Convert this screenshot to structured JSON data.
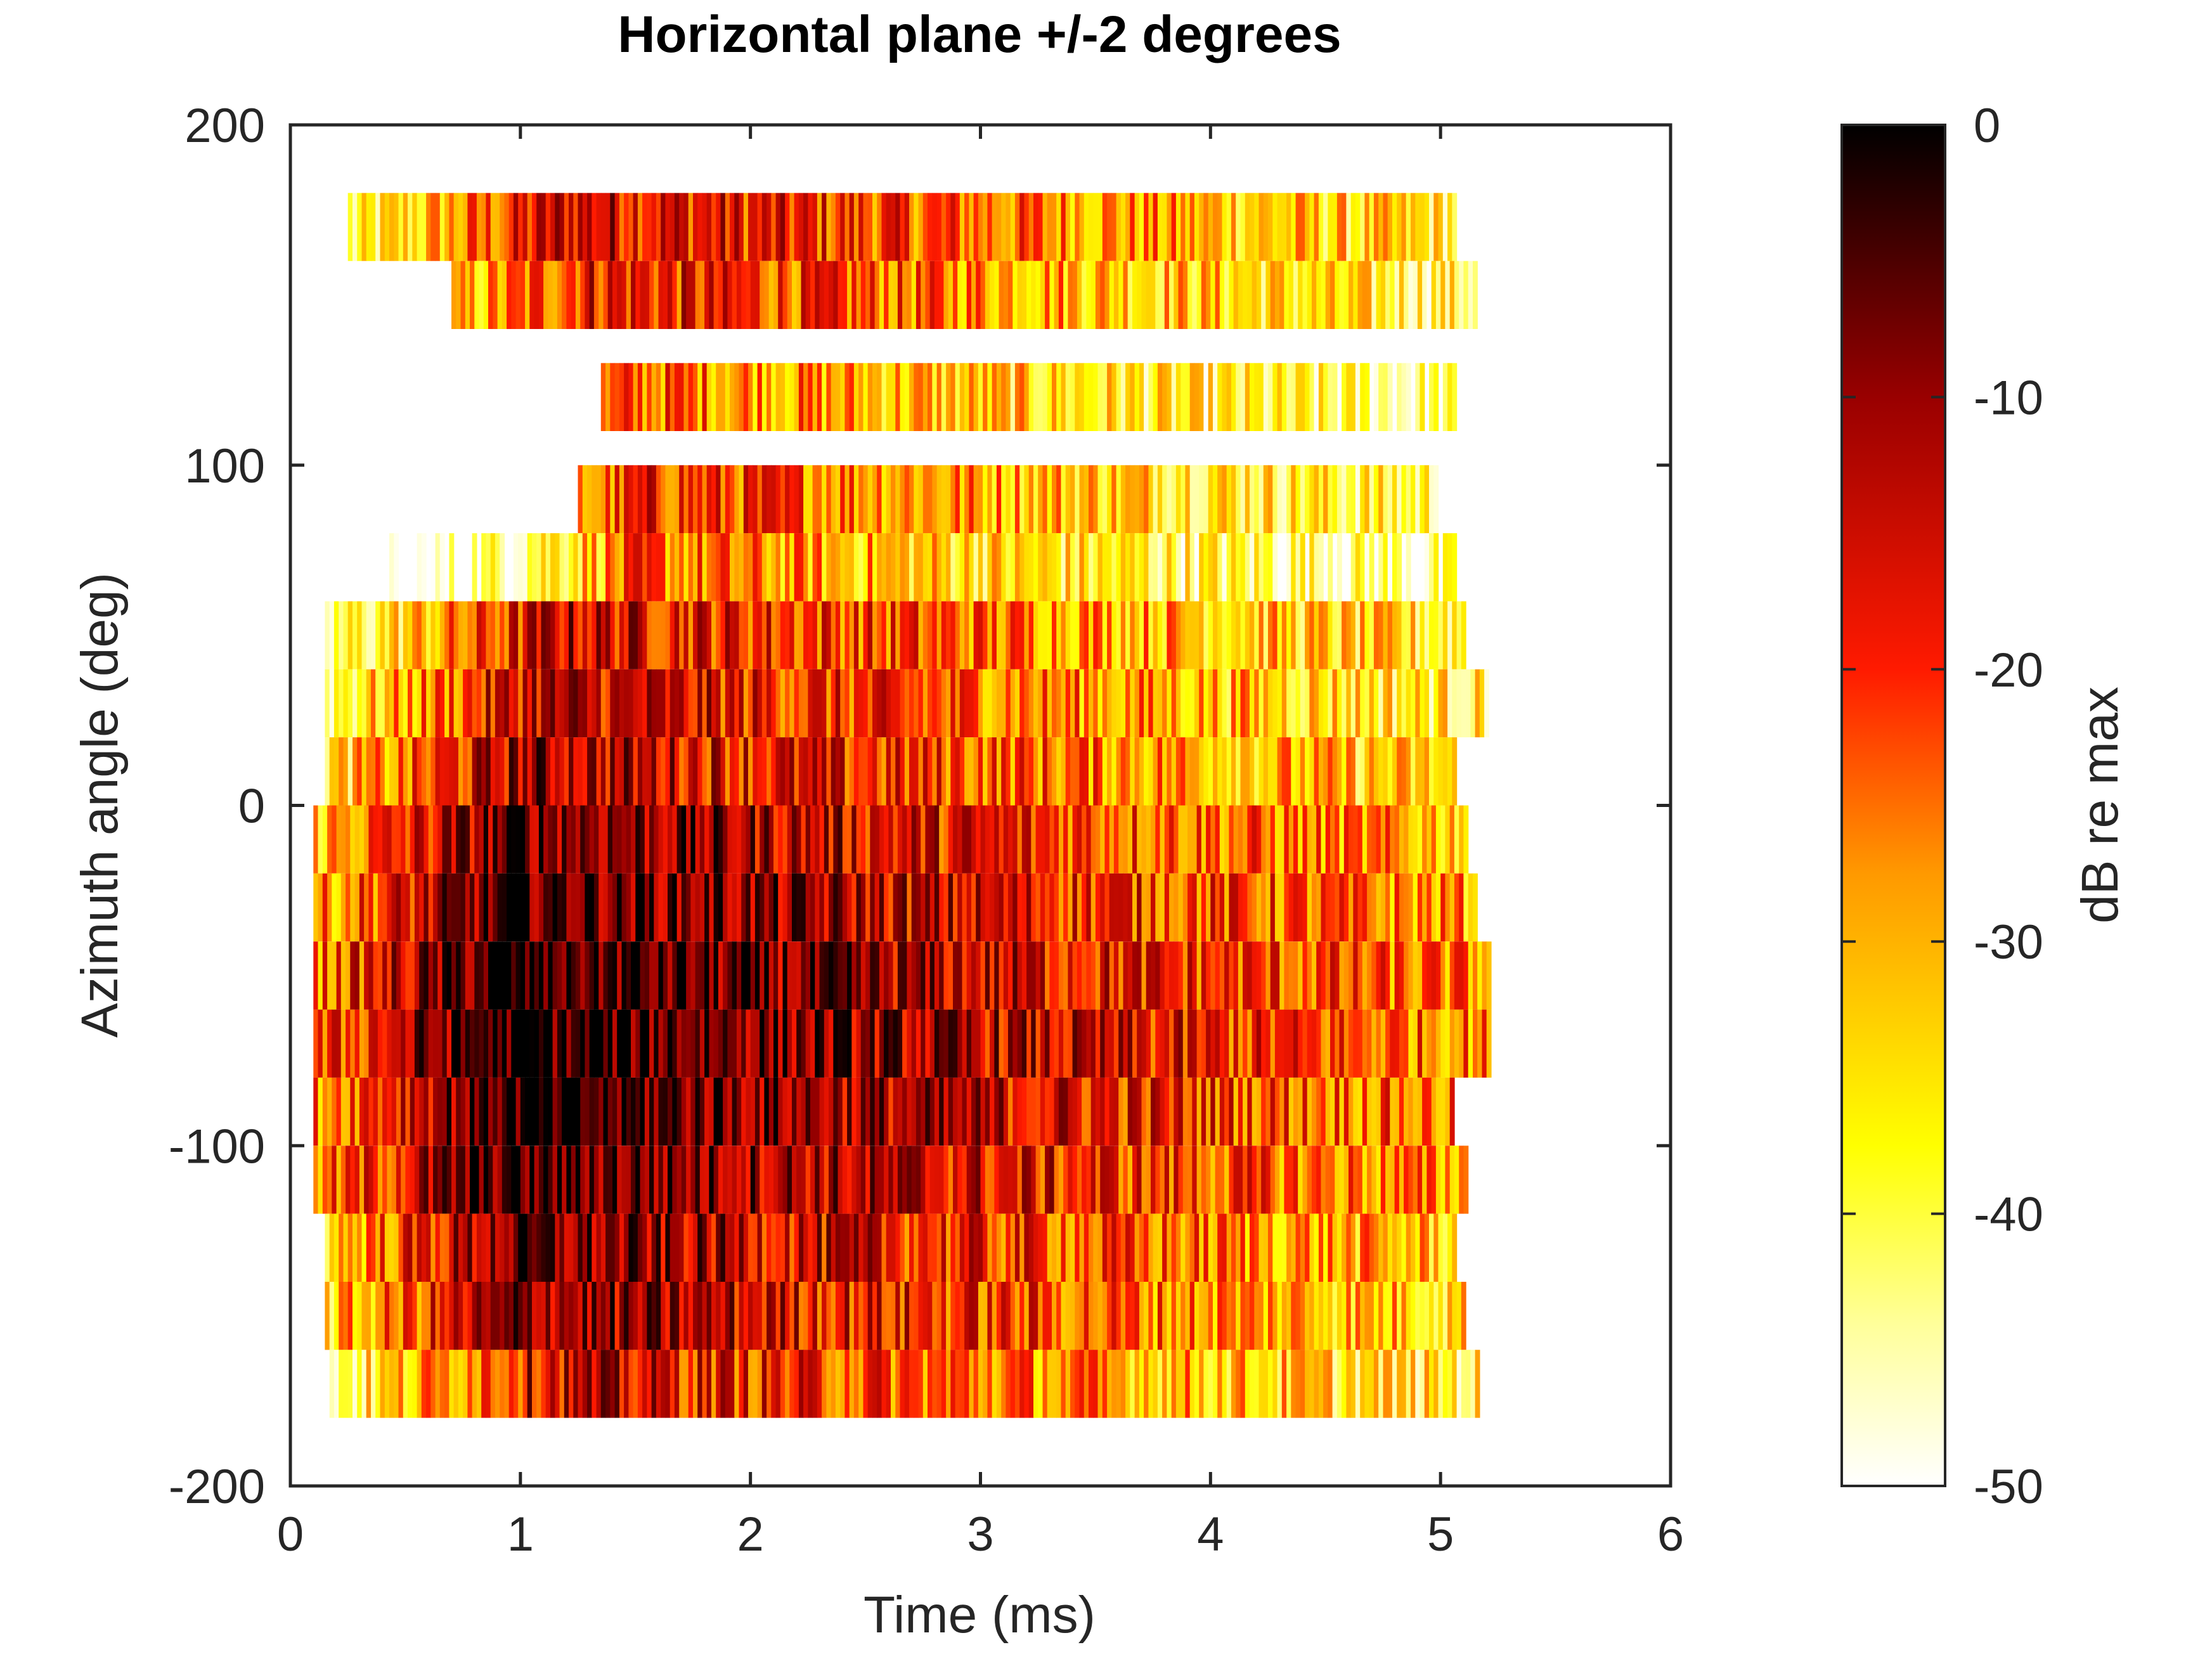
{
  "chart_data": {
    "type": "heatmap",
    "title": "Horizontal plane +/-2 degrees",
    "xlabel": "Time (ms)",
    "ylabel": "Azimuth angle (deg)",
    "xlim": [
      0,
      6
    ],
    "ylim": [
      -200,
      200
    ],
    "x_ticks": [
      "0",
      "1",
      "2",
      "3",
      "4",
      "5",
      "6"
    ],
    "y_ticks": [
      "200",
      "100",
      "0",
      "-100",
      "-200"
    ],
    "colorbar": {
      "label": "dB re max",
      "range": [
        -50,
        0
      ],
      "ticks": [
        "0",
        "-10",
        "-20",
        "-30",
        "-40",
        "-50"
      ],
      "colormap": [
        "#ffffff",
        "#ffff00",
        "#ff8000",
        "#ff0000",
        "#800000",
        "#000000"
      ]
    },
    "rows": [
      {
        "azimuth": 170,
        "t_start": 0.25,
        "t_end": 5.05,
        "peak_ms": 1.2,
        "peak_db": -14
      },
      {
        "azimuth": 150,
        "t_start": 0.7,
        "t_end": 5.15,
        "peak_ms": 1.3,
        "peak_db": -17
      },
      {
        "azimuth": 120,
        "t_start": 1.35,
        "t_end": 5.05,
        "peak_ms": 1.5,
        "peak_db": -24
      },
      {
        "azimuth": 90,
        "t_start": 1.25,
        "t_end": 5.0,
        "peak_ms": 1.55,
        "peak_db": -20
      },
      {
        "azimuth": 70,
        "t_start": 0.25,
        "t_end": 5.05,
        "peak_ms": 1.5,
        "peak_db": -25
      },
      {
        "azimuth": 50,
        "t_start": 0.15,
        "t_end": 5.1,
        "peak_ms": 1.15,
        "peak_db": -14
      },
      {
        "azimuth": 30,
        "t_start": 0.15,
        "t_end": 5.2,
        "peak_ms": 1.05,
        "peak_db": -13
      },
      {
        "azimuth": 10,
        "t_start": 0.15,
        "t_end": 5.05,
        "peak_ms": 1.0,
        "peak_db": -11
      },
      {
        "azimuth": -10,
        "t_start": 0.1,
        "t_end": 5.1,
        "peak_ms": 0.95,
        "peak_db": -6
      },
      {
        "azimuth": -30,
        "t_start": 0.1,
        "t_end": 5.15,
        "peak_ms": 0.95,
        "peak_db": -4
      },
      {
        "azimuth": -50,
        "t_start": 0.1,
        "t_end": 5.2,
        "peak_ms": 0.9,
        "peak_db": -2
      },
      {
        "azimuth": -70,
        "t_start": 0.1,
        "t_end": 5.2,
        "peak_ms": 0.9,
        "peak_db": -1
      },
      {
        "azimuth": -90,
        "t_start": 0.1,
        "t_end": 5.05,
        "peak_ms": 0.9,
        "peak_db": -2
      },
      {
        "azimuth": -110,
        "t_start": 0.1,
        "t_end": 5.1,
        "peak_ms": 0.9,
        "peak_db": -4
      },
      {
        "azimuth": -130,
        "t_start": 0.15,
        "t_end": 5.05,
        "peak_ms": 0.95,
        "peak_db": -8
      },
      {
        "azimuth": -150,
        "t_start": 0.15,
        "t_end": 5.1,
        "peak_ms": 1.0,
        "peak_db": -9
      },
      {
        "azimuth": -170,
        "t_start": 0.15,
        "t_end": 5.15,
        "peak_ms": 1.1,
        "peak_db": -14
      }
    ],
    "grid": false
  }
}
